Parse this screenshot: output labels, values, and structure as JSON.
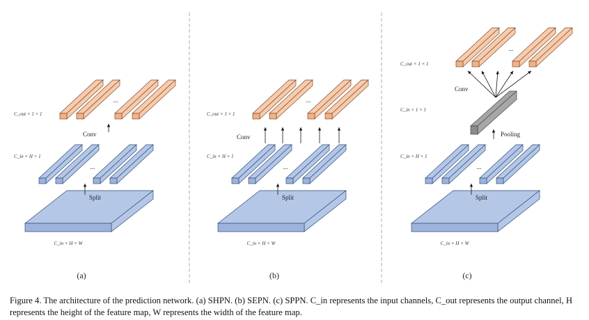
{
  "panels": [
    {
      "id": "a",
      "sub_label": "(a)",
      "base_label": "C_in × H × W",
      "split_label": "Split",
      "mid_label": "C_in × H × 1",
      "op_label": "Conv",
      "top_label": "C_out × 1 × 1",
      "ellipsis_mid": "...",
      "ellipsis_top": "..."
    },
    {
      "id": "b",
      "sub_label": "(b)",
      "base_label": "C_in × H × W",
      "split_label": "Split",
      "mid_label": "C_in × H × 1",
      "op_label": "Conv",
      "top_label": "C_out × 1 × 1",
      "ellipsis_mid": "...",
      "ellipsis_top": "..."
    },
    {
      "id": "c",
      "sub_label": "(c)",
      "base_label": "C_in × H × W",
      "split_label": "Split",
      "mid_label": "C_in × H × 1",
      "pool_label": "Pooling",
      "pooled_label": "C_in × 1 × 1",
      "op_label": "Conv",
      "top_label": "C_out × 1 × 1",
      "ellipsis_mid": "...",
      "ellipsis_top": "..."
    }
  ],
  "caption": "Figure 4. The architecture of the prediction network. (a) SHPN. (b) SEPN. (c) SPPN. C_in represents the input channels, C_out represents the output channel, H represents the height of the feature map, W represents the width of the feature map.",
  "colors": {
    "blue_face": "#b4c7e7",
    "blue_front": "#9db3de",
    "blue_edge": "#2f4a78",
    "peach_face": "#f8cbad",
    "peach_front": "#f4b183",
    "peach_edge": "#7a4a2a",
    "gray_face": "#a6a6a6",
    "gray_front": "#8c8c8c",
    "divider": "#999999"
  }
}
